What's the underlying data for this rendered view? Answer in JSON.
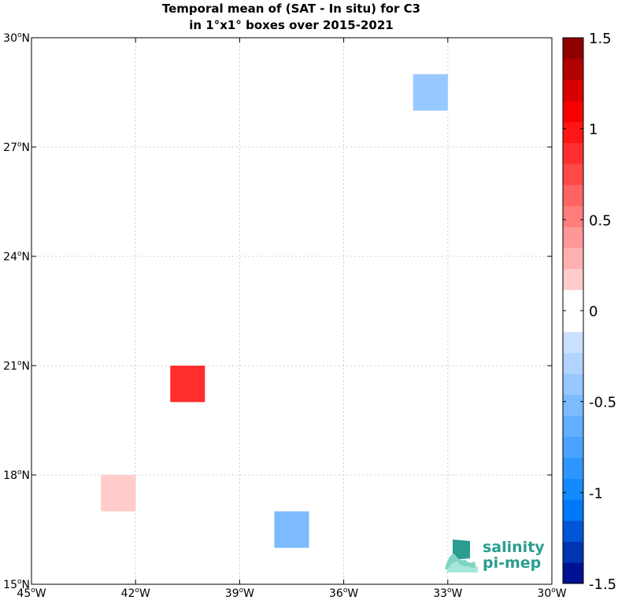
{
  "title": {
    "line1": "Temporal mean of (SAT - In situ) for C3",
    "line2": "in 1°x1° boxes over 2015-2021"
  },
  "chart_data": {
    "type": "heatmap",
    "title": "Temporal mean of (SAT - In situ) for C3 in 1°x1° boxes over 2015-2021",
    "xlim": [
      -45,
      -30
    ],
    "ylim": [
      15,
      30
    ],
    "x_ticks": [
      {
        "value": -45,
        "label": "45°W"
      },
      {
        "value": -42,
        "label": "42°W"
      },
      {
        "value": -39,
        "label": "39°W"
      },
      {
        "value": -36,
        "label": "36°W"
      },
      {
        "value": -33,
        "label": "33°W"
      },
      {
        "value": -30,
        "label": "30°W"
      }
    ],
    "y_ticks": [
      {
        "value": 15,
        "label": "15°N"
      },
      {
        "value": 18,
        "label": "18°N"
      },
      {
        "value": 21,
        "label": "21°N"
      },
      {
        "value": 24,
        "label": "24°N"
      },
      {
        "value": 27,
        "label": "27°N"
      },
      {
        "value": 30,
        "label": "30°N"
      }
    ],
    "grid": true,
    "cells": [
      {
        "lon": -34,
        "lat": 28,
        "value": -0.45
      },
      {
        "lon": -41,
        "lat": 20,
        "value": 0.9
      },
      {
        "lon": -43,
        "lat": 17,
        "value": 0.15
      },
      {
        "lon": -38,
        "lat": 16,
        "value": -0.55
      }
    ],
    "colorbar": {
      "min": -1.5,
      "max": 1.5,
      "ticks": [
        {
          "value": 1.5,
          "label": "1.5"
        },
        {
          "value": 1,
          "label": "1"
        },
        {
          "value": 0.5,
          "label": "0.5"
        },
        {
          "value": 0,
          "label": "0"
        },
        {
          "value": -0.5,
          "label": "-0.5"
        },
        {
          "value": -1,
          "label": "-1"
        },
        {
          "value": -1.5,
          "label": "-1.5"
        }
      ]
    }
  },
  "logo": {
    "line1": "salinity",
    "line2": "pi-mep",
    "icon": "salinity-pimep-waves-icon"
  }
}
